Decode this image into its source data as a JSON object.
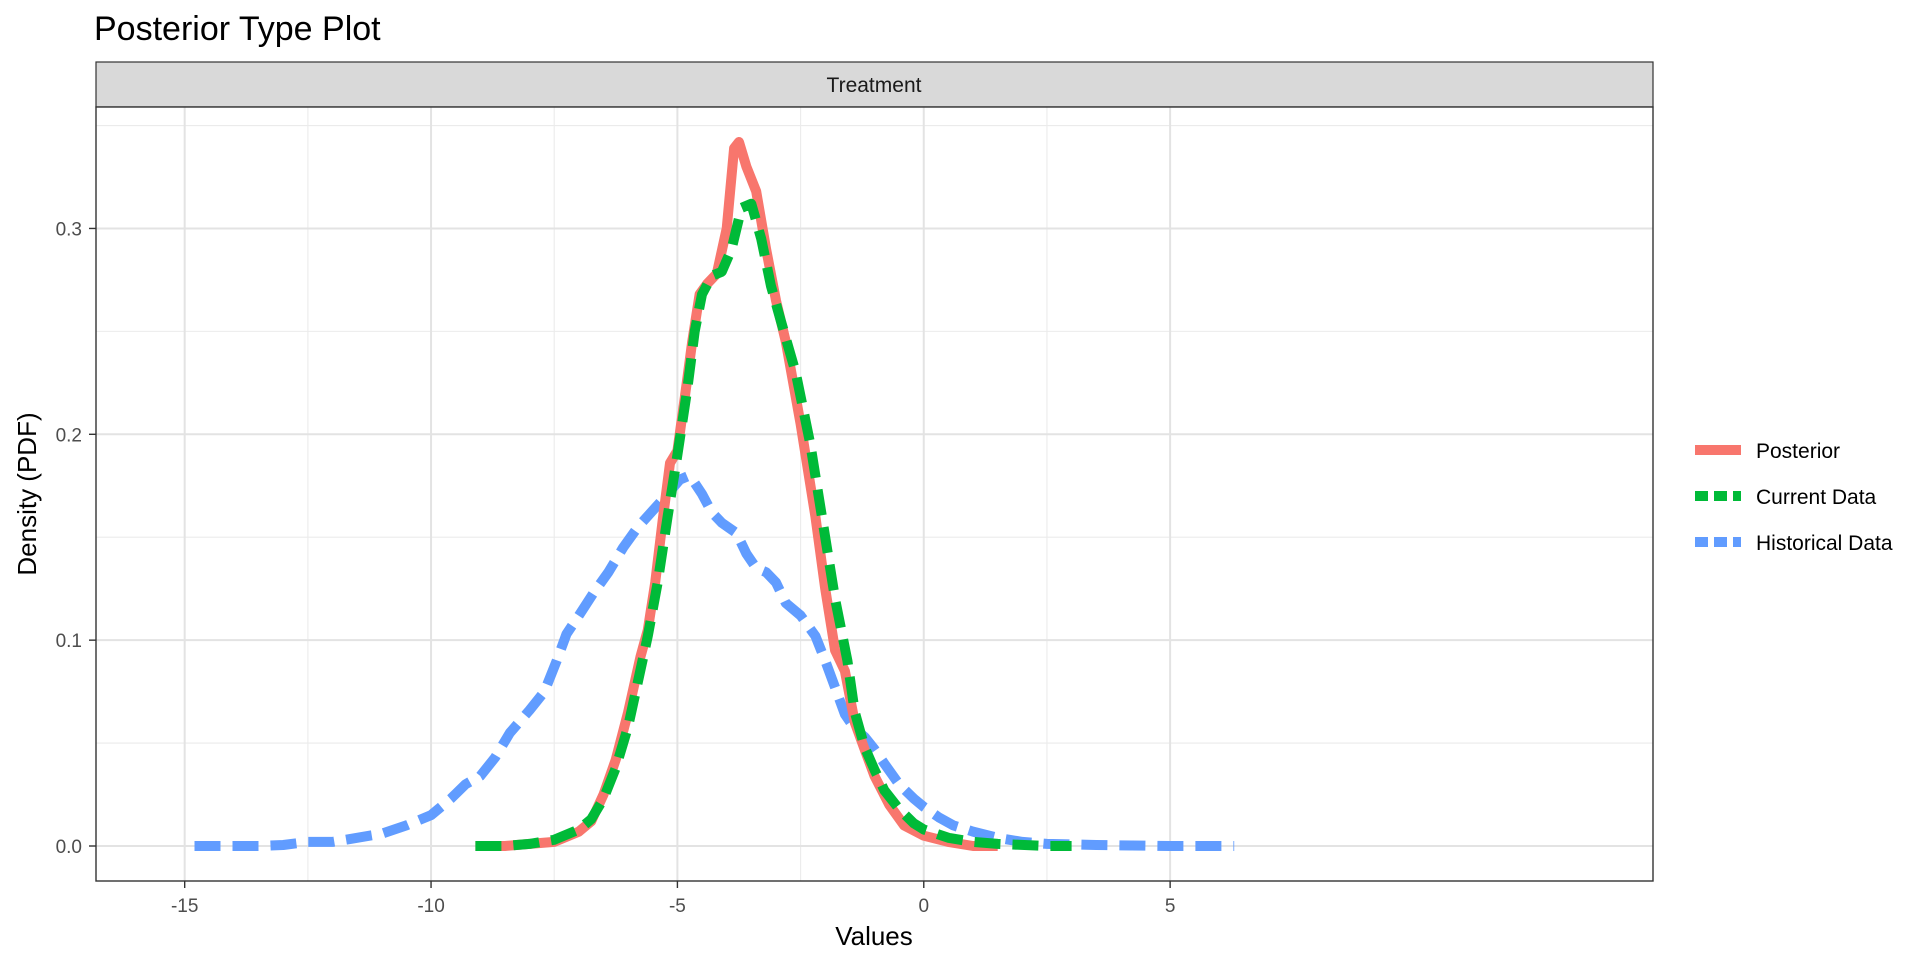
{
  "chart_data": {
    "type": "line",
    "title": "Posterior Type Plot",
    "facet": "Treatment",
    "xlabel": "Values",
    "ylabel": "Density (PDF)",
    "xlim": [
      -16.8,
      14.8
    ],
    "ylim": [
      -0.017,
      0.359
    ],
    "x_ticks": [
      -15,
      -10,
      -5,
      0,
      5
    ],
    "x_tick_labels": [
      "-15",
      "-10",
      "-5",
      "0",
      "5"
    ],
    "y_ticks": [
      0.0,
      0.1,
      0.2,
      0.3
    ],
    "y_tick_labels": [
      "0.0",
      "0.1",
      "0.2",
      "0.3"
    ],
    "grid": true,
    "legend_position": "right",
    "series": [
      {
        "name": "Posterior",
        "color": "#F8766D",
        "dash": "solid",
        "points": [
          [
            -9.1,
            0.0
          ],
          [
            -8.5,
            0.0
          ],
          [
            -8.0,
            0.001
          ],
          [
            -7.5,
            0.002
          ],
          [
            -7.0,
            0.007
          ],
          [
            -6.75,
            0.012
          ],
          [
            -6.5,
            0.025
          ],
          [
            -6.25,
            0.042
          ],
          [
            -6.0,
            0.065
          ],
          [
            -5.75,
            0.092
          ],
          [
            -5.6,
            0.105
          ],
          [
            -5.45,
            0.128
          ],
          [
            -5.3,
            0.158
          ],
          [
            -5.15,
            0.186
          ],
          [
            -5.0,
            0.192
          ],
          [
            -4.85,
            0.218
          ],
          [
            -4.7,
            0.245
          ],
          [
            -4.55,
            0.268
          ],
          [
            -4.4,
            0.273
          ],
          [
            -4.2,
            0.278
          ],
          [
            -4.0,
            0.3
          ],
          [
            -3.85,
            0.339
          ],
          [
            -3.75,
            0.342
          ],
          [
            -3.6,
            0.33
          ],
          [
            -3.4,
            0.318
          ],
          [
            -3.2,
            0.29
          ],
          [
            -3.0,
            0.265
          ],
          [
            -2.8,
            0.245
          ],
          [
            -2.5,
            0.205
          ],
          [
            -2.2,
            0.16
          ],
          [
            -2.0,
            0.125
          ],
          [
            -1.8,
            0.095
          ],
          [
            -1.6,
            0.085
          ],
          [
            -1.4,
            0.06
          ],
          [
            -1.2,
            0.047
          ],
          [
            -1.0,
            0.034
          ],
          [
            -0.7,
            0.02
          ],
          [
            -0.4,
            0.01
          ],
          [
            0.0,
            0.005
          ],
          [
            0.5,
            0.002
          ],
          [
            1.0,
            0.0
          ],
          [
            1.5,
            0.0
          ]
        ]
      },
      {
        "name": "Current Data",
        "color": "#00BA38",
        "dash": "dashed",
        "points": [
          [
            -9.1,
            0.0
          ],
          [
            -8.5,
            0.0
          ],
          [
            -8.0,
            0.001
          ],
          [
            -7.5,
            0.003
          ],
          [
            -7.0,
            0.008
          ],
          [
            -6.75,
            0.013
          ],
          [
            -6.5,
            0.023
          ],
          [
            -6.25,
            0.038
          ],
          [
            -6.0,
            0.058
          ],
          [
            -5.8,
            0.08
          ],
          [
            -5.6,
            0.102
          ],
          [
            -5.4,
            0.128
          ],
          [
            -5.2,
            0.16
          ],
          [
            -5.0,
            0.19
          ],
          [
            -4.8,
            0.222
          ],
          [
            -4.65,
            0.25
          ],
          [
            -4.5,
            0.268
          ],
          [
            -4.3,
            0.277
          ],
          [
            -4.1,
            0.279
          ],
          [
            -3.9,
            0.29
          ],
          [
            -3.7,
            0.31
          ],
          [
            -3.5,
            0.312
          ],
          [
            -3.3,
            0.295
          ],
          [
            -3.1,
            0.272
          ],
          [
            -2.9,
            0.255
          ],
          [
            -2.6,
            0.23
          ],
          [
            -2.3,
            0.195
          ],
          [
            -2.0,
            0.15
          ],
          [
            -1.8,
            0.12
          ],
          [
            -1.55,
            0.09
          ],
          [
            -1.4,
            0.065
          ],
          [
            -1.2,
            0.048
          ],
          [
            -1.0,
            0.037
          ],
          [
            -0.8,
            0.027
          ],
          [
            -0.5,
            0.018
          ],
          [
            -0.2,
            0.011
          ],
          [
            0.0,
            0.008
          ],
          [
            0.5,
            0.004
          ],
          [
            1.0,
            0.002
          ],
          [
            1.5,
            0.001
          ],
          [
            2.5,
            0.0
          ],
          [
            3.0,
            0.0
          ]
        ]
      },
      {
        "name": "Historical Data",
        "color": "#619CFF",
        "dash": "dashed",
        "points": [
          [
            -14.8,
            0.0
          ],
          [
            -14.0,
            0.0
          ],
          [
            -13.5,
            0.0
          ],
          [
            -13.0,
            0.0005
          ],
          [
            -12.5,
            0.002
          ],
          [
            -12.0,
            0.002
          ],
          [
            -11.5,
            0.004
          ],
          [
            -11.0,
            0.006
          ],
          [
            -10.5,
            0.01
          ],
          [
            -10.0,
            0.015
          ],
          [
            -9.6,
            0.023
          ],
          [
            -9.3,
            0.03
          ],
          [
            -9.0,
            0.034
          ],
          [
            -8.7,
            0.043
          ],
          [
            -8.4,
            0.055
          ],
          [
            -8.0,
            0.066
          ],
          [
            -7.7,
            0.075
          ],
          [
            -7.45,
            0.09
          ],
          [
            -7.25,
            0.103
          ],
          [
            -7.0,
            0.112
          ],
          [
            -6.7,
            0.123
          ],
          [
            -6.4,
            0.133
          ],
          [
            -6.1,
            0.145
          ],
          [
            -5.8,
            0.155
          ],
          [
            -5.5,
            0.163
          ],
          [
            -5.2,
            0.171
          ],
          [
            -4.95,
            0.178
          ],
          [
            -4.75,
            0.18
          ],
          [
            -4.5,
            0.171
          ],
          [
            -4.3,
            0.162
          ],
          [
            -4.1,
            0.157
          ],
          [
            -3.8,
            0.152
          ],
          [
            -3.6,
            0.142
          ],
          [
            -3.4,
            0.135
          ],
          [
            -3.2,
            0.133
          ],
          [
            -3.0,
            0.128
          ],
          [
            -2.8,
            0.118
          ],
          [
            -2.5,
            0.112
          ],
          [
            -2.2,
            0.102
          ],
          [
            -2.0,
            0.09
          ],
          [
            -1.8,
            0.077
          ],
          [
            -1.6,
            0.064
          ],
          [
            -1.4,
            0.057
          ],
          [
            -1.2,
            0.053
          ],
          [
            -1.0,
            0.047
          ],
          [
            -0.8,
            0.04
          ],
          [
            -0.5,
            0.03
          ],
          [
            -0.2,
            0.023
          ],
          [
            0.0,
            0.019
          ],
          [
            0.3,
            0.014
          ],
          [
            0.6,
            0.01
          ],
          [
            1.0,
            0.007
          ],
          [
            1.5,
            0.004
          ],
          [
            2.0,
            0.002
          ],
          [
            2.5,
            0.001
          ],
          [
            3.5,
            0.0005
          ],
          [
            5.0,
            0.0
          ],
          [
            6.3,
            0.0
          ]
        ]
      }
    ]
  }
}
